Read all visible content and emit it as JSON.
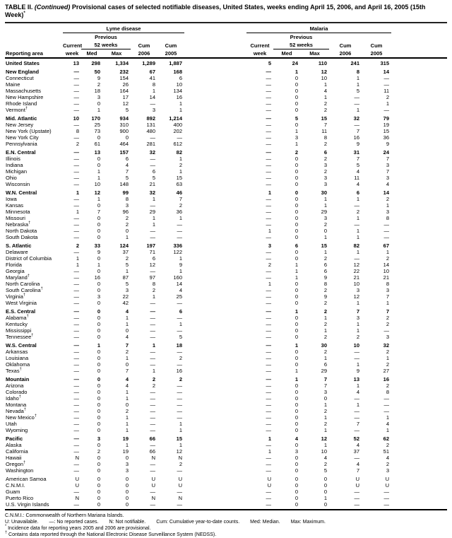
{
  "title": {
    "table_label": "TABLE II.",
    "continued": "(Continued)",
    "text": "Provisional cases of selected notifiable diseases, United States, weeks ending April 15, 2006, and April 16, 2005 (15th Week)",
    "mark": "*"
  },
  "header": {
    "reporting_area": "Reporting area",
    "groups": [
      {
        "name": "Lyme disease"
      },
      {
        "name": "Malaria"
      }
    ],
    "subcols": {
      "previous": "Previous",
      "current": "Current",
      "week": "week",
      "weeks52": "52 weeks",
      "med": "Med",
      "max": "Max",
      "cum": "Cum",
      "y2006": "2006",
      "y2005": "2005"
    }
  },
  "rows": [
    {
      "area": "United States",
      "bold": true,
      "sec": false,
      "mark": "",
      "values": [
        "13",
        "298",
        "1,334",
        "1,289",
        "1,887",
        "5",
        "24",
        "110",
        "241",
        "315"
      ]
    },
    {
      "area": "New England",
      "bold": true,
      "sec": true,
      "mark": "",
      "values": [
        "—",
        "50",
        "232",
        "67",
        "168",
        "—",
        "1",
        "12",
        "8",
        "14"
      ]
    },
    {
      "area": "Connecticut",
      "bold": false,
      "sec": false,
      "mark": "",
      "values": [
        "—",
        "9",
        "154",
        "41",
        "6",
        "—",
        "0",
        "10",
        "1",
        "—"
      ]
    },
    {
      "area": "Maine",
      "bold": false,
      "sec": false,
      "mark": "",
      "values": [
        "—",
        "2",
        "26",
        "8",
        "10",
        "—",
        "0",
        "1",
        "1",
        "—"
      ]
    },
    {
      "area": "Massachusetts",
      "bold": false,
      "sec": false,
      "mark": "",
      "values": [
        "—",
        "18",
        "164",
        "1",
        "134",
        "—",
        "0",
        "4",
        "5",
        "11"
      ]
    },
    {
      "area": "New Hampshire",
      "bold": false,
      "sec": false,
      "mark": "",
      "values": [
        "—",
        "3",
        "17",
        "14",
        "16",
        "—",
        "0",
        "1",
        "—",
        "2"
      ]
    },
    {
      "area": "Rhode Island",
      "bold": false,
      "sec": false,
      "mark": "",
      "values": [
        "—",
        "0",
        "12",
        "—",
        "1",
        "—",
        "0",
        "2",
        "—",
        "1"
      ]
    },
    {
      "area": "Vermont",
      "bold": false,
      "sec": false,
      "mark": "†",
      "values": [
        "—",
        "1",
        "5",
        "3",
        "1",
        "—",
        "0",
        "2",
        "1",
        "—"
      ]
    },
    {
      "area": "Mid. Atlantic",
      "bold": true,
      "sec": true,
      "mark": "",
      "values": [
        "10",
        "170",
        "934",
        "892",
        "1,214",
        "—",
        "5",
        "15",
        "32",
        "79"
      ]
    },
    {
      "area": "New Jersey",
      "bold": false,
      "sec": false,
      "mark": "",
      "values": [
        "—",
        "25",
        "310",
        "131",
        "400",
        "—",
        "0",
        "7",
        "—",
        "19"
      ]
    },
    {
      "area": "New York (Upstate)",
      "bold": false,
      "sec": false,
      "mark": "",
      "values": [
        "8",
        "73",
        "900",
        "480",
        "202",
        "—",
        "1",
        "11",
        "7",
        "15"
      ]
    },
    {
      "area": "New York City",
      "bold": false,
      "sec": false,
      "mark": "",
      "values": [
        "—",
        "0",
        "0",
        "—",
        "—",
        "—",
        "3",
        "8",
        "16",
        "36"
      ]
    },
    {
      "area": "Pennsylvania",
      "bold": false,
      "sec": false,
      "mark": "",
      "values": [
        "2",
        "61",
        "464",
        "281",
        "612",
        "—",
        "1",
        "2",
        "9",
        "9"
      ]
    },
    {
      "area": "E.N. Central",
      "bold": true,
      "sec": true,
      "mark": "",
      "values": [
        "—",
        "13",
        "157",
        "32",
        "82",
        "—",
        "2",
        "6",
        "31",
        "24"
      ]
    },
    {
      "area": "Illinois",
      "bold": false,
      "sec": false,
      "mark": "",
      "values": [
        "—",
        "0",
        "6",
        "—",
        "1",
        "—",
        "0",
        "2",
        "7",
        "7"
      ]
    },
    {
      "area": "Indiana",
      "bold": false,
      "sec": false,
      "mark": "",
      "values": [
        "—",
        "0",
        "4",
        "—",
        "2",
        "—",
        "0",
        "3",
        "5",
        "3"
      ]
    },
    {
      "area": "Michigan",
      "bold": false,
      "sec": false,
      "mark": "",
      "values": [
        "—",
        "1",
        "7",
        "6",
        "1",
        "—",
        "0",
        "2",
        "4",
        "7"
      ]
    },
    {
      "area": "Ohio",
      "bold": false,
      "sec": false,
      "mark": "",
      "values": [
        "—",
        "1",
        "5",
        "5",
        "15",
        "—",
        "0",
        "3",
        "11",
        "3"
      ]
    },
    {
      "area": "Wisconsin",
      "bold": false,
      "sec": false,
      "mark": "",
      "values": [
        "—",
        "10",
        "148",
        "21",
        "63",
        "—",
        "0",
        "3",
        "4",
        "4"
      ]
    },
    {
      "area": "W.N. Central",
      "bold": true,
      "sec": true,
      "mark": "",
      "values": [
        "1",
        "12",
        "99",
        "32",
        "46",
        "1",
        "0",
        "30",
        "6",
        "14"
      ]
    },
    {
      "area": "Iowa",
      "bold": false,
      "sec": false,
      "mark": "",
      "values": [
        "—",
        "1",
        "8",
        "1",
        "7",
        "—",
        "0",
        "1",
        "1",
        "2"
      ]
    },
    {
      "area": "Kansas",
      "bold": false,
      "sec": false,
      "mark": "",
      "values": [
        "—",
        "0",
        "3",
        "—",
        "2",
        "—",
        "0",
        "1",
        "—",
        "1"
      ]
    },
    {
      "area": "Minnesota",
      "bold": false,
      "sec": false,
      "mark": "",
      "values": [
        "1",
        "7",
        "96",
        "29",
        "36",
        "—",
        "0",
        "29",
        "2",
        "3"
      ]
    },
    {
      "area": "Missouri",
      "bold": false,
      "sec": false,
      "mark": "",
      "values": [
        "—",
        "0",
        "2",
        "1",
        "1",
        "—",
        "0",
        "3",
        "1",
        "8"
      ]
    },
    {
      "area": "Nebraska",
      "bold": false,
      "sec": false,
      "mark": "†",
      "values": [
        "—",
        "0",
        "2",
        "1",
        "—",
        "—",
        "0",
        "2",
        "—",
        "—"
      ]
    },
    {
      "area": "North Dakota",
      "bold": false,
      "sec": false,
      "mark": "",
      "values": [
        "—",
        "0",
        "0",
        "—",
        "—",
        "1",
        "0",
        "0",
        "1",
        "—"
      ]
    },
    {
      "area": "South Dakota",
      "bold": false,
      "sec": false,
      "mark": "",
      "values": [
        "—",
        "0",
        "1",
        "—",
        "—",
        "—",
        "0",
        "1",
        "1",
        "—"
      ]
    },
    {
      "area": "S. Atlantic",
      "bold": true,
      "sec": true,
      "mark": "",
      "values": [
        "2",
        "33",
        "124",
        "197",
        "336",
        "3",
        "6",
        "15",
        "82",
        "67"
      ]
    },
    {
      "area": "Delaware",
      "bold": false,
      "sec": false,
      "mark": "",
      "values": [
        "—",
        "9",
        "37",
        "71",
        "122",
        "—",
        "0",
        "1",
        "1",
        "1"
      ]
    },
    {
      "area": "District of Columbia",
      "bold": false,
      "sec": false,
      "mark": "",
      "values": [
        "1",
        "0",
        "2",
        "6",
        "1",
        "—",
        "0",
        "2",
        "—",
        "2"
      ]
    },
    {
      "area": "Florida",
      "bold": false,
      "sec": false,
      "mark": "",
      "values": [
        "1",
        "1",
        "5",
        "12",
        "9",
        "2",
        "1",
        "6",
        "12",
        "14"
      ]
    },
    {
      "area": "Georgia",
      "bold": false,
      "sec": false,
      "mark": "",
      "values": [
        "—",
        "0",
        "1",
        "—",
        "1",
        "—",
        "1",
        "6",
        "22",
        "10"
      ]
    },
    {
      "area": "Maryland",
      "bold": false,
      "sec": false,
      "mark": "†",
      "values": [
        "—",
        "16",
        "87",
        "97",
        "160",
        "—",
        "1",
        "9",
        "21",
        "21"
      ]
    },
    {
      "area": "North Carolina",
      "bold": false,
      "sec": false,
      "mark": "",
      "values": [
        "—",
        "0",
        "5",
        "8",
        "14",
        "1",
        "0",
        "8",
        "10",
        "8"
      ]
    },
    {
      "area": "South Carolina",
      "bold": false,
      "sec": false,
      "mark": "†",
      "values": [
        "—",
        "0",
        "3",
        "2",
        "4",
        "—",
        "0",
        "2",
        "3",
        "3"
      ]
    },
    {
      "area": "Virginia",
      "bold": false,
      "sec": false,
      "mark": "†",
      "values": [
        "—",
        "3",
        "22",
        "1",
        "25",
        "—",
        "0",
        "9",
        "12",
        "7"
      ]
    },
    {
      "area": "West Virginia",
      "bold": false,
      "sec": false,
      "mark": "",
      "values": [
        "—",
        "0",
        "42",
        "—",
        "—",
        "—",
        "0",
        "2",
        "1",
        "1"
      ]
    },
    {
      "area": "E.S. Central",
      "bold": true,
      "sec": true,
      "mark": "",
      "values": [
        "—",
        "0",
        "4",
        "—",
        "6",
        "—",
        "1",
        "2",
        "7",
        "7"
      ]
    },
    {
      "area": "Alabama",
      "bold": false,
      "sec": false,
      "mark": "†",
      "values": [
        "—",
        "0",
        "1",
        "—",
        "—",
        "—",
        "0",
        "1",
        "3",
        "2"
      ]
    },
    {
      "area": "Kentucky",
      "bold": false,
      "sec": false,
      "mark": "",
      "values": [
        "—",
        "0",
        "1",
        "—",
        "1",
        "—",
        "0",
        "2",
        "1",
        "2"
      ]
    },
    {
      "area": "Mississippi",
      "bold": false,
      "sec": false,
      "mark": "",
      "values": [
        "—",
        "0",
        "0",
        "—",
        "—",
        "—",
        "0",
        "1",
        "1",
        "—"
      ]
    },
    {
      "area": "Tennessee",
      "bold": false,
      "sec": false,
      "mark": "†",
      "values": [
        "—",
        "0",
        "4",
        "—",
        "5",
        "—",
        "0",
        "2",
        "2",
        "3"
      ]
    },
    {
      "area": "W.S. Central",
      "bold": true,
      "sec": true,
      "mark": "",
      "values": [
        "—",
        "1",
        "7",
        "1",
        "18",
        "—",
        "1",
        "30",
        "10",
        "32"
      ]
    },
    {
      "area": "Arkansas",
      "bold": false,
      "sec": false,
      "mark": "",
      "values": [
        "—",
        "0",
        "2",
        "—",
        "—",
        "—",
        "0",
        "2",
        "—",
        "2"
      ]
    },
    {
      "area": "Louisiana",
      "bold": false,
      "sec": false,
      "mark": "",
      "values": [
        "—",
        "0",
        "1",
        "—",
        "2",
        "—",
        "0",
        "1",
        "—",
        "1"
      ]
    },
    {
      "area": "Oklahoma",
      "bold": false,
      "sec": false,
      "mark": "",
      "values": [
        "—",
        "0",
        "0",
        "—",
        "—",
        "—",
        "0",
        "6",
        "1",
        "2"
      ]
    },
    {
      "area": "Texas",
      "bold": false,
      "sec": false,
      "mark": "†",
      "values": [
        "—",
        "0",
        "7",
        "1",
        "16",
        "—",
        "1",
        "29",
        "9",
        "27"
      ]
    },
    {
      "area": "Mountain",
      "bold": true,
      "sec": true,
      "mark": "",
      "values": [
        "—",
        "0",
        "4",
        "2",
        "2",
        "—",
        "1",
        "7",
        "13",
        "16"
      ]
    },
    {
      "area": "Arizona",
      "bold": false,
      "sec": false,
      "mark": "",
      "values": [
        "—",
        "0",
        "4",
        "2",
        "—",
        "—",
        "0",
        "7",
        "1",
        "2"
      ]
    },
    {
      "area": "Colorado",
      "bold": false,
      "sec": false,
      "mark": "",
      "values": [
        "—",
        "0",
        "1",
        "—",
        "—",
        "—",
        "0",
        "3",
        "4",
        "8"
      ]
    },
    {
      "area": "Idaho",
      "bold": false,
      "sec": false,
      "mark": "†",
      "values": [
        "—",
        "0",
        "1",
        "—",
        "—",
        "—",
        "0",
        "0",
        "—",
        "—"
      ]
    },
    {
      "area": "Montana",
      "bold": false,
      "sec": false,
      "mark": "",
      "values": [
        "—",
        "0",
        "0",
        "—",
        "—",
        "—",
        "0",
        "1",
        "1",
        "—"
      ]
    },
    {
      "area": "Nevada",
      "bold": false,
      "sec": false,
      "mark": "†",
      "values": [
        "—",
        "0",
        "2",
        "—",
        "—",
        "—",
        "0",
        "2",
        "—",
        "—"
      ]
    },
    {
      "area": "New Mexico",
      "bold": false,
      "sec": false,
      "mark": "†",
      "values": [
        "—",
        "0",
        "1",
        "—",
        "—",
        "—",
        "0",
        "1",
        "—",
        "1"
      ]
    },
    {
      "area": "Utah",
      "bold": false,
      "sec": false,
      "mark": "",
      "values": [
        "—",
        "0",
        "1",
        "—",
        "1",
        "—",
        "0",
        "2",
        "7",
        "4"
      ]
    },
    {
      "area": "Wyoming",
      "bold": false,
      "sec": false,
      "mark": "",
      "values": [
        "—",
        "0",
        "1",
        "—",
        "1",
        "—",
        "0",
        "1",
        "—",
        "1"
      ]
    },
    {
      "area": "Pacific",
      "bold": true,
      "sec": true,
      "mark": "",
      "values": [
        "—",
        "3",
        "19",
        "66",
        "15",
        "1",
        "4",
        "12",
        "52",
        "62"
      ]
    },
    {
      "area": "Alaska",
      "bold": false,
      "sec": false,
      "mark": "",
      "values": [
        "—",
        "0",
        "1",
        "—",
        "1",
        "—",
        "0",
        "1",
        "4",
        "2"
      ]
    },
    {
      "area": "California",
      "bold": false,
      "sec": false,
      "mark": "",
      "values": [
        "—",
        "2",
        "19",
        "66",
        "12",
        "1",
        "3",
        "10",
        "37",
        "51"
      ]
    },
    {
      "area": "Hawaii",
      "bold": false,
      "sec": false,
      "mark": "",
      "values": [
        "N",
        "0",
        "0",
        "N",
        "N",
        "—",
        "0",
        "4",
        "—",
        "4"
      ]
    },
    {
      "area": "Oregon",
      "bold": false,
      "sec": false,
      "mark": "†",
      "values": [
        "—",
        "0",
        "3",
        "—",
        "2",
        "—",
        "0",
        "2",
        "4",
        "2"
      ]
    },
    {
      "area": "Washington",
      "bold": false,
      "sec": false,
      "mark": "",
      "values": [
        "—",
        "0",
        "3",
        "—",
        "—",
        "—",
        "0",
        "5",
        "7",
        "3"
      ]
    },
    {
      "area": "American Samoa",
      "bold": false,
      "sec": true,
      "mark": "",
      "values": [
        "U",
        "0",
        "0",
        "U",
        "U",
        "U",
        "0",
        "0",
        "U",
        "U"
      ]
    },
    {
      "area": "C.N.M.I.",
      "bold": false,
      "sec": false,
      "mark": "",
      "values": [
        "U",
        "0",
        "0",
        "U",
        "U",
        "U",
        "0",
        "0",
        "U",
        "U"
      ]
    },
    {
      "area": "Guam",
      "bold": false,
      "sec": false,
      "mark": "",
      "values": [
        "—",
        "0",
        "0",
        "—",
        "—",
        "—",
        "0",
        "0",
        "—",
        "—"
      ]
    },
    {
      "area": "Puerto Rico",
      "bold": false,
      "sec": false,
      "mark": "",
      "values": [
        "N",
        "0",
        "0",
        "N",
        "N",
        "—",
        "0",
        "1",
        "—",
        "—"
      ]
    },
    {
      "area": "U.S. Virgin Islands",
      "bold": false,
      "sec": false,
      "mark": "",
      "values": [
        "—",
        "0",
        "0",
        "—",
        "—",
        "—",
        "0",
        "0",
        "—",
        "—"
      ]
    }
  ],
  "footnotes": {
    "cnmi": "C.N.M.I.: Commonwealth of Northern Mariana Islands.",
    "legend": [
      "U: Unavailable.",
      "—: No reported cases.",
      "N: Not notifiable.",
      "Cum: Cumulative year-to-date counts.",
      "Med: Median.",
      "Max: Maximum."
    ],
    "star": {
      "mark": "*",
      "text": "Incidence data for reporting years 2005 and 2006 are provisional."
    },
    "dagger": {
      "mark": "†",
      "text": "Contains data reported through the National Electronic Disease Surveillance System (NEDSS)."
    }
  }
}
